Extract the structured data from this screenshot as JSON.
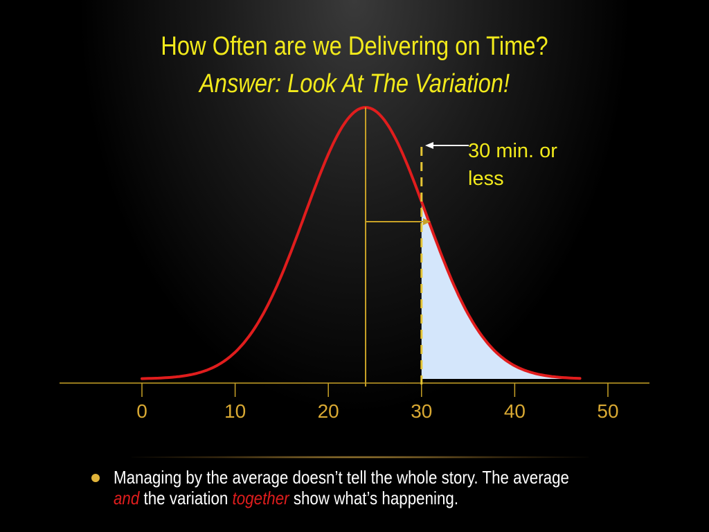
{
  "title": {
    "line1": "How Often are we Delivering on Time?",
    "line2": "Answer:  Look At The Variation!"
  },
  "callout": {
    "text": "30 min. or less"
  },
  "bullet": {
    "part1": "Managing by the average doesn’t tell the whole story.  The average ",
    "em1": "and",
    "part2": " the variation ",
    "em2": "together",
    "part3": " show what’s happening."
  },
  "colors": {
    "title": "#f2ea1b",
    "curve": "#e01d1d",
    "shaded_area": "#d4e6fb",
    "axis": "#c9a227",
    "tick_labels": "#d9a933",
    "marker_line": "#e6c635",
    "bullet_emphasis": "#e01d1d"
  },
  "chart_data": {
    "type": "area",
    "x_ticks": [
      0,
      10,
      20,
      30,
      40,
      50
    ],
    "x_tick_labels": [
      "0",
      "10",
      "20",
      "30",
      "40",
      "50"
    ],
    "xlim": [
      0,
      50
    ],
    "distribution": "normal",
    "mean": 24,
    "std_dev": 6.5,
    "x_range": [
      0,
      47
    ],
    "threshold": 30,
    "shaded_region": [
      30,
      47
    ],
    "callout_label": "30 min. or less"
  }
}
